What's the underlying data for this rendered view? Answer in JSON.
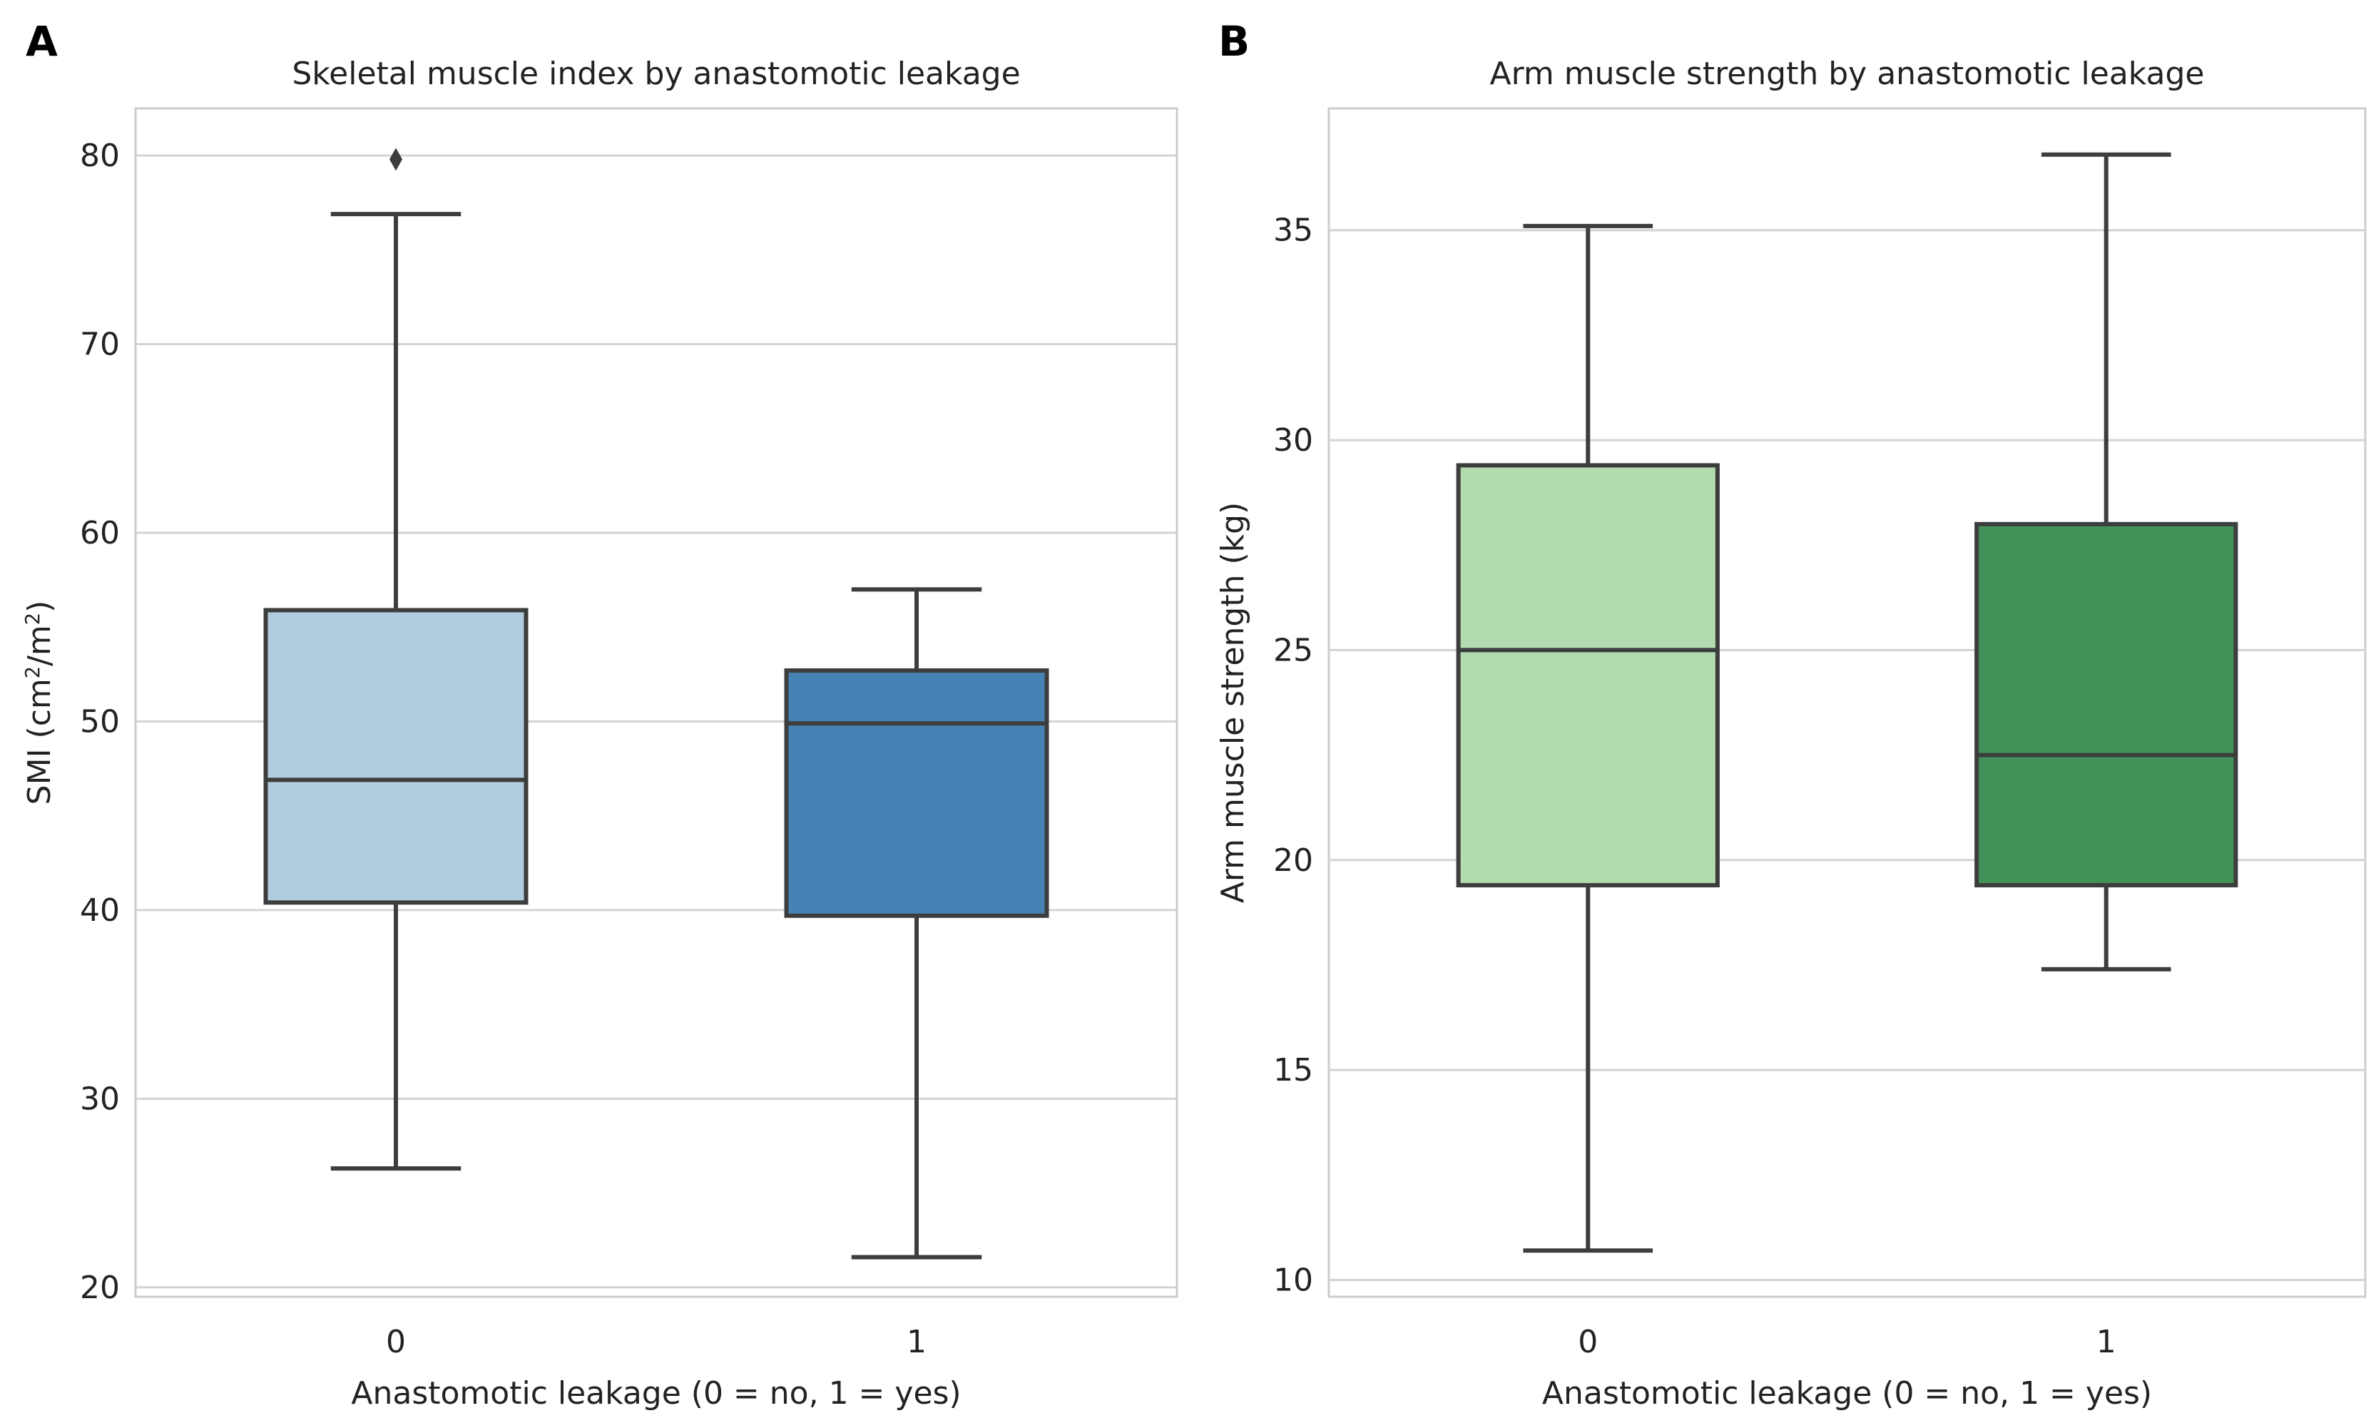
{
  "panels": [
    {
      "letter": "A"
    },
    {
      "letter": "B"
    }
  ],
  "chart_data": [
    {
      "type": "boxplot",
      "title": "Skeletal muscle index by anastomotic leakage",
      "xlabel": "Anastomotic leakage (0 = no, 1 = yes)",
      "ylabel": "SMI (cm²/m²)",
      "ylim": [
        19.5,
        82.5
      ],
      "yticks": [
        20,
        30,
        40,
        50,
        60,
        70,
        80
      ],
      "grid": true,
      "categories": [
        "0",
        "1"
      ],
      "colors": [
        "#b3cde0",
        "#4682b4"
      ],
      "boxes": [
        {
          "category": "0",
          "whisker_low": 26.3,
          "q1": 40.4,
          "median": 46.9,
          "q3": 55.9,
          "whisker_high": 76.9,
          "outliers": [
            79.8
          ]
        },
        {
          "category": "1",
          "whisker_low": 21.6,
          "q1": 39.7,
          "median": 49.9,
          "q3": 52.7,
          "whisker_high": 57.0,
          "outliers": []
        }
      ]
    },
    {
      "type": "boxplot",
      "title": "Arm muscle strength by anastomotic leakage",
      "xlabel": "Anastomotic leakage (0 = no, 1 = yes)",
      "ylabel": "Arm muscle strength (kg)",
      "ylim": [
        9.6,
        37.9
      ],
      "yticks": [
        10,
        15,
        20,
        25,
        30,
        35
      ],
      "grid": true,
      "categories": [
        "0",
        "1"
      ],
      "colors": [
        "#b2dbb0",
        "#41935a"
      ],
      "boxes": [
        {
          "category": "0",
          "whisker_low": 10.7,
          "q1": 19.4,
          "median": 25.0,
          "q3": 29.4,
          "whisker_high": 35.1,
          "outliers": []
        },
        {
          "category": "1",
          "whisker_low": 17.4,
          "q1": 19.4,
          "median": 22.5,
          "q3": 28.0,
          "whisker_high": 36.8,
          "outliers": []
        }
      ]
    }
  ]
}
